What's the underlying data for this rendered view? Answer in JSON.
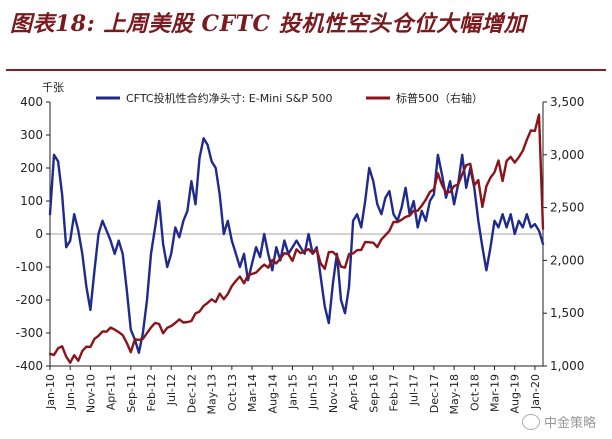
{
  "header": {
    "figure_title": "图表18:  上周美股 CFTC 投机性空头仓位大幅增加"
  },
  "watermark": {
    "text": "中金策略",
    "icon": "wechat-icon"
  },
  "chart_data": {
    "type": "line",
    "title": "图表18:  上周美股 CFTC 投机性空头仓位大幅增加",
    "left_axis": {
      "unit_label": "千张",
      "min": -400,
      "max": 400,
      "ticks": [
        "400",
        "300",
        "200",
        "100",
        "0",
        "-100",
        "-200",
        "-300",
        "-400"
      ]
    },
    "right_axis": {
      "min": 1000,
      "max": 3500,
      "ticks": [
        "3,500",
        "3,000",
        "2,500",
        "2,000",
        "1,500",
        "1,000"
      ]
    },
    "x_axis": {
      "start": "2010-01",
      "end": "2020-03",
      "ticks": [
        "Jan-10",
        "Jun-10",
        "Nov-10",
        "Apr-11",
        "Sep-11",
        "Feb-12",
        "Jul-12",
        "Dec-12",
        "May-13",
        "Oct-13",
        "Mar-14",
        "Aug-14",
        "Jan-15",
        "Jun-15",
        "Nov-15",
        "Apr-16",
        "Sep-16",
        "Feb-17",
        "Jul-17",
        "Dec-17",
        "May-18",
        "Oct-18",
        "Mar-19",
        "Aug-19",
        "Jan-20"
      ]
    },
    "legend_position": "top",
    "colors": {
      "cftc": "#1f2a8c",
      "sp500": "#8b1419",
      "grid": "#cccccc"
    },
    "series": [
      {
        "name": "CFTC投机性合约净头寸:  E-Mini S&P 500",
        "axis": "left",
        "points": [
          [
            "2010-01",
            60
          ],
          [
            "2010-02",
            240
          ],
          [
            "2010-03",
            220
          ],
          [
            "2010-04",
            120
          ],
          [
            "2010-05",
            -40
          ],
          [
            "2010-06",
            -20
          ],
          [
            "2010-07",
            60
          ],
          [
            "2010-08",
            10
          ],
          [
            "2010-09",
            -60
          ],
          [
            "2010-10",
            -160
          ],
          [
            "2010-11",
            -230
          ],
          [
            "2010-12",
            -110
          ],
          [
            "2011-01",
            0
          ],
          [
            "2011-02",
            40
          ],
          [
            "2011-03",
            10
          ],
          [
            "2011-04",
            -20
          ],
          [
            "2011-05",
            -60
          ],
          [
            "2011-06",
            -20
          ],
          [
            "2011-07",
            -60
          ],
          [
            "2011-08",
            -170
          ],
          [
            "2011-09",
            -290
          ],
          [
            "2011-10",
            -320
          ],
          [
            "2011-11",
            -360
          ],
          [
            "2011-12",
            -300
          ],
          [
            "2012-01",
            -200
          ],
          [
            "2012-02",
            -60
          ],
          [
            "2012-03",
            20
          ],
          [
            "2012-04",
            100
          ],
          [
            "2012-05",
            -30
          ],
          [
            "2012-06",
            -100
          ],
          [
            "2012-07",
            -60
          ],
          [
            "2012-08",
            20
          ],
          [
            "2012-09",
            -10
          ],
          [
            "2012-10",
            40
          ],
          [
            "2012-11",
            70
          ],
          [
            "2012-12",
            160
          ],
          [
            "2013-01",
            90
          ],
          [
            "2013-02",
            230
          ],
          [
            "2013-03",
            290
          ],
          [
            "2013-04",
            270
          ],
          [
            "2013-05",
            220
          ],
          [
            "2013-06",
            200
          ],
          [
            "2013-07",
            120
          ],
          [
            "2013-08",
            0
          ],
          [
            "2013-09",
            40
          ],
          [
            "2013-10",
            -20
          ],
          [
            "2013-11",
            -60
          ],
          [
            "2013-12",
            -100
          ],
          [
            "2014-01",
            -60
          ],
          [
            "2014-02",
            -140
          ],
          [
            "2014-03",
            -90
          ],
          [
            "2014-04",
            -40
          ],
          [
            "2014-05",
            -70
          ],
          [
            "2014-06",
            0
          ],
          [
            "2014-07",
            -60
          ],
          [
            "2014-08",
            -110
          ],
          [
            "2014-09",
            -40
          ],
          [
            "2014-10",
            -80
          ],
          [
            "2014-11",
            -20
          ],
          [
            "2014-12",
            -60
          ],
          [
            "2015-01",
            -40
          ],
          [
            "2015-02",
            -20
          ],
          [
            "2015-03",
            -40
          ],
          [
            "2015-04",
            -60
          ],
          [
            "2015-05",
            0
          ],
          [
            "2015-06",
            -60
          ],
          [
            "2015-07",
            -40
          ],
          [
            "2015-08",
            -130
          ],
          [
            "2015-09",
            -220
          ],
          [
            "2015-10",
            -270
          ],
          [
            "2015-11",
            -150
          ],
          [
            "2015-12",
            -60
          ],
          [
            "2016-01",
            -200
          ],
          [
            "2016-02",
            -240
          ],
          [
            "2016-03",
            -160
          ],
          [
            "2016-04",
            40
          ],
          [
            "2016-05",
            60
          ],
          [
            "2016-06",
            20
          ],
          [
            "2016-07",
            100
          ],
          [
            "2016-08",
            200
          ],
          [
            "2016-09",
            160
          ],
          [
            "2016-10",
            90
          ],
          [
            "2016-11",
            60
          ],
          [
            "2016-12",
            110
          ],
          [
            "2017-01",
            130
          ],
          [
            "2017-02",
            60
          ],
          [
            "2017-03",
            40
          ],
          [
            "2017-04",
            80
          ],
          [
            "2017-05",
            140
          ],
          [
            "2017-06",
            60
          ],
          [
            "2017-07",
            100
          ],
          [
            "2017-08",
            20
          ],
          [
            "2017-09",
            70
          ],
          [
            "2017-10",
            40
          ],
          [
            "2017-11",
            100
          ],
          [
            "2017-12",
            120
          ],
          [
            "2018-01",
            240
          ],
          [
            "2018-02",
            180
          ],
          [
            "2018-03",
            110
          ],
          [
            "2018-04",
            160
          ],
          [
            "2018-05",
            90
          ],
          [
            "2018-06",
            150
          ],
          [
            "2018-07",
            240
          ],
          [
            "2018-08",
            140
          ],
          [
            "2018-09",
            200
          ],
          [
            "2018-10",
            140
          ],
          [
            "2018-11",
            40
          ],
          [
            "2018-12",
            -40
          ],
          [
            "2019-01",
            -110
          ],
          [
            "2019-02",
            -40
          ],
          [
            "2019-03",
            40
          ],
          [
            "2019-04",
            20
          ],
          [
            "2019-05",
            60
          ],
          [
            "2019-06",
            20
          ],
          [
            "2019-07",
            60
          ],
          [
            "2019-08",
            0
          ],
          [
            "2019-09",
            40
          ],
          [
            "2019-10",
            20
          ],
          [
            "2019-11",
            60
          ],
          [
            "2019-12",
            20
          ],
          [
            "2020-01",
            30
          ],
          [
            "2020-02",
            10
          ],
          [
            "2020-03",
            -30
          ]
        ]
      },
      {
        "name": "标普500（右轴）",
        "axis": "right",
        "points": [
          [
            "2010-01",
            1115
          ],
          [
            "2010-02",
            1105
          ],
          [
            "2010-03",
            1169
          ],
          [
            "2010-04",
            1187
          ],
          [
            "2010-05",
            1089
          ],
          [
            "2010-06",
            1031
          ],
          [
            "2010-07",
            1102
          ],
          [
            "2010-08",
            1049
          ],
          [
            "2010-09",
            1141
          ],
          [
            "2010-10",
            1183
          ],
          [
            "2010-11",
            1181
          ],
          [
            "2010-12",
            1258
          ],
          [
            "2011-01",
            1286
          ],
          [
            "2011-02",
            1327
          ],
          [
            "2011-03",
            1326
          ],
          [
            "2011-04",
            1364
          ],
          [
            "2011-05",
            1345
          ],
          [
            "2011-06",
            1321
          ],
          [
            "2011-07",
            1292
          ],
          [
            "2011-08",
            1219
          ],
          [
            "2011-09",
            1131
          ],
          [
            "2011-10",
            1253
          ],
          [
            "2011-11",
            1247
          ],
          [
            "2011-12",
            1258
          ],
          [
            "2012-01",
            1312
          ],
          [
            "2012-02",
            1366
          ],
          [
            "2012-03",
            1408
          ],
          [
            "2012-04",
            1398
          ],
          [
            "2012-05",
            1310
          ],
          [
            "2012-06",
            1362
          ],
          [
            "2012-07",
            1379
          ],
          [
            "2012-08",
            1407
          ],
          [
            "2012-09",
            1441
          ],
          [
            "2012-10",
            1412
          ],
          [
            "2012-11",
            1416
          ],
          [
            "2012-12",
            1426
          ],
          [
            "2013-01",
            1498
          ],
          [
            "2013-02",
            1515
          ],
          [
            "2013-03",
            1569
          ],
          [
            "2013-04",
            1598
          ],
          [
            "2013-05",
            1631
          ],
          [
            "2013-06",
            1606
          ],
          [
            "2013-07",
            1686
          ],
          [
            "2013-08",
            1633
          ],
          [
            "2013-09",
            1682
          ],
          [
            "2013-10",
            1757
          ],
          [
            "2013-11",
            1806
          ],
          [
            "2013-12",
            1848
          ],
          [
            "2014-01",
            1783
          ],
          [
            "2014-02",
            1859
          ],
          [
            "2014-03",
            1872
          ],
          [
            "2014-04",
            1884
          ],
          [
            "2014-05",
            1924
          ],
          [
            "2014-06",
            1960
          ],
          [
            "2014-07",
            1931
          ],
          [
            "2014-08",
            2003
          ],
          [
            "2014-09",
            1972
          ],
          [
            "2014-10",
            2018
          ],
          [
            "2014-11",
            2068
          ],
          [
            "2014-12",
            2059
          ],
          [
            "2015-01",
            1995
          ],
          [
            "2015-02",
            2105
          ],
          [
            "2015-03",
            2068
          ],
          [
            "2015-04",
            2086
          ],
          [
            "2015-05",
            2107
          ],
          [
            "2015-06",
            2063
          ],
          [
            "2015-07",
            2104
          ],
          [
            "2015-08",
            1972
          ],
          [
            "2015-09",
            1920
          ],
          [
            "2015-10",
            2079
          ],
          [
            "2015-11",
            2080
          ],
          [
            "2015-12",
            2044
          ],
          [
            "2016-01",
            1940
          ],
          [
            "2016-02",
            1932
          ],
          [
            "2016-03",
            2060
          ],
          [
            "2016-04",
            2065
          ],
          [
            "2016-05",
            2097
          ],
          [
            "2016-06",
            2099
          ],
          [
            "2016-07",
            2174
          ],
          [
            "2016-08",
            2171
          ],
          [
            "2016-09",
            2168
          ],
          [
            "2016-10",
            2126
          ],
          [
            "2016-11",
            2199
          ],
          [
            "2016-12",
            2239
          ],
          [
            "2017-01",
            2279
          ],
          [
            "2017-02",
            2364
          ],
          [
            "2017-03",
            2363
          ],
          [
            "2017-04",
            2384
          ],
          [
            "2017-05",
            2412
          ],
          [
            "2017-06",
            2423
          ],
          [
            "2017-07",
            2470
          ],
          [
            "2017-08",
            2471
          ],
          [
            "2017-09",
            2519
          ],
          [
            "2017-10",
            2575
          ],
          [
            "2017-11",
            2648
          ],
          [
            "2017-12",
            2674
          ],
          [
            "2018-01",
            2824
          ],
          [
            "2018-02",
            2714
          ],
          [
            "2018-03",
            2641
          ],
          [
            "2018-04",
            2648
          ],
          [
            "2018-05",
            2705
          ],
          [
            "2018-06",
            2718
          ],
          [
            "2018-07",
            2816
          ],
          [
            "2018-08",
            2902
          ],
          [
            "2018-09",
            2914
          ],
          [
            "2018-10",
            2712
          ],
          [
            "2018-11",
            2760
          ],
          [
            "2018-12",
            2507
          ],
          [
            "2019-01",
            2704
          ],
          [
            "2019-02",
            2784
          ],
          [
            "2019-03",
            2834
          ],
          [
            "2019-04",
            2946
          ],
          [
            "2019-05",
            2752
          ],
          [
            "2019-06",
            2942
          ],
          [
            "2019-07",
            2980
          ],
          [
            "2019-08",
            2926
          ],
          [
            "2019-09",
            2977
          ],
          [
            "2019-10",
            3038
          ],
          [
            "2019-11",
            3141
          ],
          [
            "2019-12",
            3231
          ],
          [
            "2020-01",
            3226
          ],
          [
            "2020-02",
            3380
          ],
          [
            "2020-03",
            2300
          ]
        ]
      }
    ]
  }
}
